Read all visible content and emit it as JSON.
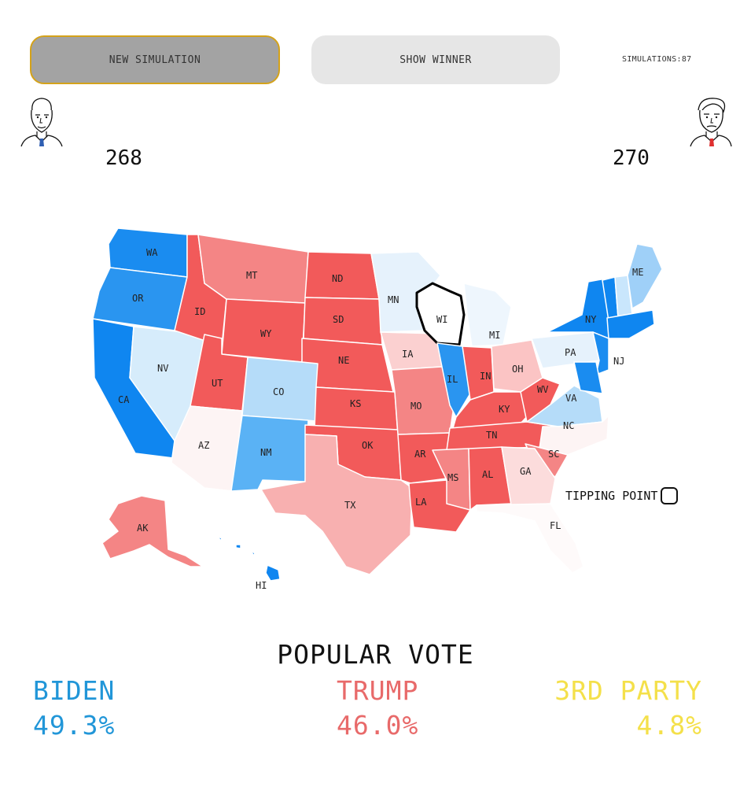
{
  "toolbar": {
    "new_simulation_label": "NEW SIMULATION",
    "show_winner_label": "SHOW WINNER",
    "simulations_text": "SIMULATIONS:87"
  },
  "candidates": {
    "biden": {
      "electoral_votes": "268",
      "color": "#2196d8"
    },
    "trump": {
      "electoral_votes": "270",
      "color": "#e86a6a"
    }
  },
  "map": {
    "states": [
      {
        "abbr": "WA",
        "fill": "#1a8cf0"
      },
      {
        "abbr": "OR",
        "fill": "#2a95f0"
      },
      {
        "abbr": "CA",
        "fill": "#0f86f0"
      },
      {
        "abbr": "NV",
        "fill": "#d6ecfb"
      },
      {
        "abbr": "ID",
        "fill": "#f25a5a"
      },
      {
        "abbr": "MT",
        "fill": "#f48585"
      },
      {
        "abbr": "WY",
        "fill": "#f25a5a"
      },
      {
        "abbr": "UT",
        "fill": "#f25a5a"
      },
      {
        "abbr": "AZ",
        "fill": "#fdf4f4"
      },
      {
        "abbr": "CO",
        "fill": "#b5dcf9"
      },
      {
        "abbr": "NM",
        "fill": "#5ab2f5"
      },
      {
        "abbr": "ND",
        "fill": "#f25a5a"
      },
      {
        "abbr": "SD",
        "fill": "#f25a5a"
      },
      {
        "abbr": "NE",
        "fill": "#f25a5a"
      },
      {
        "abbr": "KS",
        "fill": "#f25a5a"
      },
      {
        "abbr": "OK",
        "fill": "#f25a5a"
      },
      {
        "abbr": "TX",
        "fill": "#f8b0b0"
      },
      {
        "abbr": "MN",
        "fill": "#e6f2fc"
      },
      {
        "abbr": "IA",
        "fill": "#fbd0d0"
      },
      {
        "abbr": "MO",
        "fill": "#f48585"
      },
      {
        "abbr": "AR",
        "fill": "#f25a5a"
      },
      {
        "abbr": "LA",
        "fill": "#f25a5a"
      },
      {
        "abbr": "WI",
        "fill": "#ffffff"
      },
      {
        "abbr": "IL",
        "fill": "#2a95f0"
      },
      {
        "abbr": "MI",
        "fill": "#eef6fd"
      },
      {
        "abbr": "IN",
        "fill": "#f25a5a"
      },
      {
        "abbr": "OH",
        "fill": "#fbc4c4"
      },
      {
        "abbr": "KY",
        "fill": "#f25a5a"
      },
      {
        "abbr": "TN",
        "fill": "#f25a5a"
      },
      {
        "abbr": "MS",
        "fill": "#f48585"
      },
      {
        "abbr": "AL",
        "fill": "#f25a5a"
      },
      {
        "abbr": "WV",
        "fill": "#f25a5a"
      },
      {
        "abbr": "VA",
        "fill": "#b5dcf9"
      },
      {
        "abbr": "NC",
        "fill": "#fdf4f4"
      },
      {
        "abbr": "SC",
        "fill": "#f48585"
      },
      {
        "abbr": "GA",
        "fill": "#fcdcdc"
      },
      {
        "abbr": "FL",
        "fill": "#fefafa"
      },
      {
        "abbr": "PA",
        "fill": "#e6f2fc"
      },
      {
        "abbr": "NY",
        "fill": "#0f86f0"
      },
      {
        "abbr": "NJ",
        "fill": "#1a8cf0"
      },
      {
        "abbr": "ME",
        "fill": "#9fd0f8"
      },
      {
        "abbr": "AK",
        "fill": "#f48585"
      },
      {
        "abbr": "HI",
        "fill": "#0f86f0"
      }
    ]
  },
  "tipping_point": {
    "label": "TIPPING POINT"
  },
  "popular_vote": {
    "title": "POPULAR VOTE",
    "biden": {
      "name": "BIDEN",
      "pct": "49.3%",
      "color": "#2196d8"
    },
    "trump": {
      "name": "TRUMP",
      "pct": "46.0%",
      "color": "#e86a6a"
    },
    "third": {
      "name": "3RD PARTY",
      "pct": "4.8%",
      "color": "#f4e04a"
    }
  }
}
